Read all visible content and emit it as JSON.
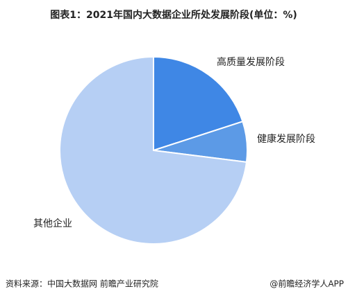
{
  "chart_data": {
    "type": "pie",
    "title": "图表1：2021年国内大数据企业所处发展阶段(单位：%)",
    "categories": [
      "高质量发展阶段",
      "健康发展阶段",
      "其他企业"
    ],
    "values": [
      20,
      7,
      73
    ],
    "colors": [
      "#3f87e5",
      "#5c9ae6",
      "#b6cff4"
    ]
  },
  "footer": {
    "source": "资料来源：中国大数据网 前瞻产业研究院",
    "credit": "@前瞻经济学人APP"
  }
}
